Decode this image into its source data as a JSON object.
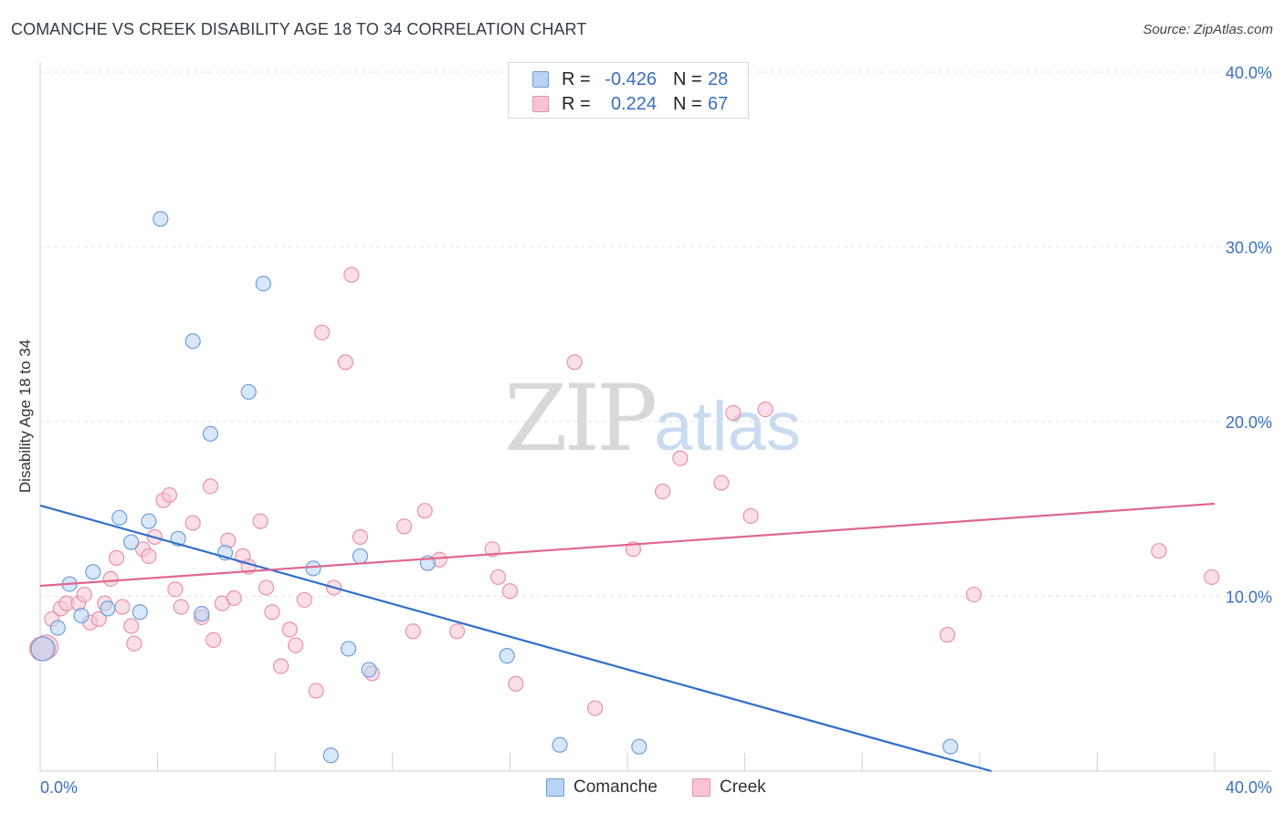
{
  "title": "COMANCHE VS CREEK DISABILITY AGE 18 TO 34 CORRELATION CHART",
  "source": "Source: ZipAtlas.com",
  "watermark": {
    "zip": "ZIP",
    "atlas": "atlas"
  },
  "colors": {
    "comanche_fill": "#b8d3f4",
    "comanche_stroke": "#6e9fd8",
    "comanche_line": "#2f6fcc",
    "creek_fill": "#f8c4d4",
    "creek_stroke": "#e890ad",
    "creek_line": "#e06690",
    "axis_text": "#3a6fc4",
    "grid": "#e3e3e3"
  },
  "legend_top": {
    "rows": [
      {
        "r_label": "R =",
        "r_value": "-0.426",
        "n_label": "N =",
        "n_value": "28"
      },
      {
        "r_label": "R =",
        "r_value": "0.224",
        "n_label": "N =",
        "n_value": "67"
      }
    ]
  },
  "legend_bottom": [
    "Comanche",
    "Creek"
  ],
  "chart_data": {
    "type": "scatter",
    "title": "COMANCHE VS CREEK DISABILITY AGE 18 TO 34 CORRELATION CHART",
    "ylabel": "Disability Age 18 to 34",
    "xlabel": "",
    "xlim": [
      0,
      40
    ],
    "ylim": [
      0,
      40
    ],
    "x_tick_labels": [
      "0.0%",
      "40.0%"
    ],
    "y_ticks": [
      10,
      20,
      30,
      40
    ],
    "y_tick_labels": [
      "10.0%",
      "20.0%",
      "30.0%",
      "40.0%"
    ],
    "grid": true,
    "legend": "top-center",
    "series": [
      {
        "name": "Comanche",
        "r": -0.426,
        "n": 28,
        "trend": {
          "x": [
            0,
            32.4
          ],
          "y": [
            15.2,
            0.0
          ]
        },
        "points": [
          [
            0.1,
            7.0
          ],
          [
            0.6,
            8.2
          ],
          [
            1.0,
            10.7
          ],
          [
            1.4,
            8.9
          ],
          [
            1.8,
            11.4
          ],
          [
            2.3,
            9.3
          ],
          [
            2.7,
            14.5
          ],
          [
            3.1,
            13.1
          ],
          [
            3.4,
            9.1
          ],
          [
            3.7,
            14.3
          ],
          [
            4.1,
            31.6
          ],
          [
            4.7,
            13.3
          ],
          [
            5.2,
            24.6
          ],
          [
            5.5,
            9.0
          ],
          [
            5.8,
            19.3
          ],
          [
            6.3,
            12.5
          ],
          [
            7.1,
            21.7
          ],
          [
            7.6,
            27.9
          ],
          [
            9.3,
            11.6
          ],
          [
            9.9,
            0.9
          ],
          [
            10.5,
            7.0
          ],
          [
            10.9,
            12.3
          ],
          [
            11.2,
            5.8
          ],
          [
            13.2,
            11.9
          ],
          [
            15.9,
            6.6
          ],
          [
            17.7,
            1.5
          ],
          [
            20.4,
            1.4
          ],
          [
            31.0,
            1.4
          ]
        ]
      },
      {
        "name": "Creek",
        "r": 0.224,
        "n": 67,
        "trend": {
          "x": [
            0,
            40
          ],
          "y": [
            10.6,
            15.3
          ]
        },
        "points": [
          [
            0.2,
            7.1
          ],
          [
            0.4,
            8.7
          ],
          [
            0.7,
            9.3
          ],
          [
            0.9,
            9.6
          ],
          [
            1.3,
            9.6
          ],
          [
            1.5,
            10.1
          ],
          [
            1.7,
            8.5
          ],
          [
            2.0,
            8.7
          ],
          [
            2.2,
            9.6
          ],
          [
            2.4,
            11.0
          ],
          [
            2.6,
            12.2
          ],
          [
            2.8,
            9.4
          ],
          [
            3.1,
            8.3
          ],
          [
            3.2,
            7.3
          ],
          [
            3.5,
            12.7
          ],
          [
            3.7,
            12.3
          ],
          [
            3.9,
            13.4
          ],
          [
            4.2,
            15.5
          ],
          [
            4.4,
            15.8
          ],
          [
            4.6,
            10.4
          ],
          [
            4.8,
            9.4
          ],
          [
            5.2,
            14.2
          ],
          [
            5.5,
            8.8
          ],
          [
            5.8,
            16.3
          ],
          [
            5.9,
            7.5
          ],
          [
            6.2,
            9.6
          ],
          [
            6.4,
            13.2
          ],
          [
            6.6,
            9.9
          ],
          [
            6.9,
            12.3
          ],
          [
            7.1,
            11.7
          ],
          [
            7.5,
            14.3
          ],
          [
            7.7,
            10.5
          ],
          [
            7.9,
            9.1
          ],
          [
            8.2,
            6.0
          ],
          [
            8.5,
            8.1
          ],
          [
            8.7,
            7.2
          ],
          [
            9.0,
            9.8
          ],
          [
            9.4,
            4.6
          ],
          [
            9.6,
            25.1
          ],
          [
            10.0,
            10.5
          ],
          [
            10.4,
            23.4
          ],
          [
            10.6,
            28.4
          ],
          [
            10.9,
            13.4
          ],
          [
            11.3,
            5.6
          ],
          [
            12.4,
            14.0
          ],
          [
            12.7,
            8.0
          ],
          [
            13.1,
            14.9
          ],
          [
            13.6,
            12.1
          ],
          [
            15.4,
            12.7
          ],
          [
            15.6,
            11.1
          ],
          [
            16.0,
            10.3
          ],
          [
            16.2,
            5.0
          ],
          [
            18.2,
            23.4
          ],
          [
            18.9,
            3.6
          ],
          [
            20.2,
            12.7
          ],
          [
            21.2,
            16.0
          ],
          [
            21.8,
            17.9
          ],
          [
            23.2,
            16.5
          ],
          [
            23.6,
            20.5
          ],
          [
            24.2,
            14.6
          ],
          [
            24.7,
            20.7
          ],
          [
            30.9,
            7.8
          ],
          [
            31.8,
            10.1
          ],
          [
            38.1,
            12.6
          ],
          [
            39.9,
            11.1
          ],
          [
            0.05,
            7.0
          ],
          [
            14.2,
            8.0
          ]
        ]
      }
    ]
  }
}
